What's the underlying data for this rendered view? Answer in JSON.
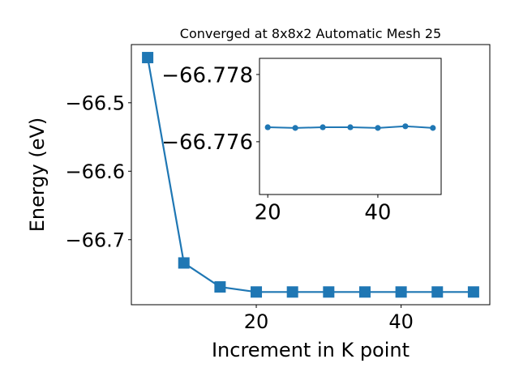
{
  "chart_data": [
    {
      "type": "line",
      "title": "Converged at 8x8x2 Automatic Mesh 25",
      "xlabel": "Increment in K point",
      "ylabel": "Energy (eV)",
      "x": [
        5,
        10,
        15,
        20,
        25,
        30,
        35,
        40,
        45,
        50
      ],
      "series": [
        {
          "color": "#1f77b4",
          "marker": "square",
          "values": [
            -66.434,
            -66.734,
            -66.769,
            -66.7764,
            -66.7764,
            -66.7764,
            -66.7764,
            -66.7764,
            -66.7764,
            -66.7764
          ]
        }
      ],
      "xlim": [
        2.75,
        52.25
      ],
      "ylim": [
        -66.795,
        -66.415
      ],
      "xticks": [
        20,
        40
      ],
      "yticks": [
        {
          "value": -66.7,
          "label": "−66.7"
        },
        {
          "value": -66.6,
          "label": "−66.6"
        },
        {
          "value": -66.5,
          "label": "−66.5"
        }
      ]
    },
    {
      "type": "line",
      "x": [
        20,
        25,
        30,
        35,
        40,
        45,
        50
      ],
      "series": [
        {
          "color": "#1f77b4",
          "marker": "circle",
          "values": [
            -66.77643,
            -66.77641,
            -66.77643,
            -66.77643,
            -66.77641,
            -66.77646,
            -66.77641
          ]
        }
      ],
      "xlim": [
        18.5,
        51.5
      ],
      "ylim": [
        -66.77443,
        -66.77848
      ],
      "xticks": [
        20,
        40
      ],
      "yticks": [
        {
          "value": -66.776,
          "label": "−66.776"
        },
        {
          "value": -66.778,
          "label": "−66.778"
        }
      ]
    }
  ]
}
